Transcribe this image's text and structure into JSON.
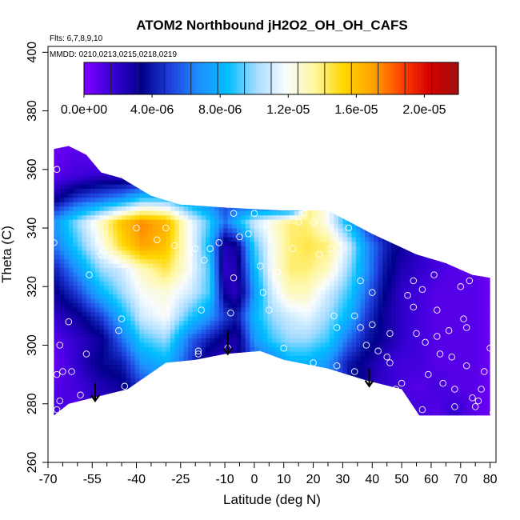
{
  "chart_data": {
    "type": "heatmap",
    "title": "ATOM2 Northbound jH2O2_OH_OH_CAFS",
    "subtitle_flights": "Flts: 6,7,8,9,10",
    "subtitle_dates": "MMDD: 0210,0213,0215,0218,0219",
    "xlabel": "Latitude (deg N)",
    "ylabel": "Theta (C)",
    "xlim": [
      -70,
      82
    ],
    "ylim": [
      260,
      402
    ],
    "x_ticks": [
      -70,
      -55,
      -40,
      -25,
      -10,
      0,
      10,
      20,
      30,
      40,
      50,
      60,
      70,
      80
    ],
    "x_tick_labels": [
      "-70",
      "-55",
      "-40",
      "-25",
      "-10",
      "0",
      "10",
      "20",
      "30",
      "40",
      "50",
      "60",
      "70",
      "80"
    ],
    "y_ticks": [
      260,
      280,
      300,
      320,
      340,
      360,
      380,
      400
    ],
    "y_tick_labels": [
      "260",
      "280",
      "300",
      "320",
      "340",
      "360",
      "380",
      "400"
    ],
    "colorbar": {
      "min": 0.0,
      "max": 2.2e-05,
      "tick_values": [
        0.0,
        4e-06,
        8e-06,
        1.2e-05,
        1.6e-05,
        2e-05
      ],
      "tick_labels": [
        "0.0e+00",
        "4.0e-06",
        "8.0e-06",
        "1.2e-05",
        "1.6e-05",
        "2.0e-05"
      ],
      "colors": [
        "#7f00ff",
        "#3a00d8",
        "#00008b",
        "#1f3fdd",
        "#1e90ff",
        "#00bfff",
        "#a8dcff",
        "#f8fcff",
        "#fff7a0",
        "#ffd700",
        "#ffa500",
        "#ff4500",
        "#d40000",
        "#a01010"
      ]
    },
    "field_grid": {
      "lat": [
        -68,
        -60,
        -52,
        -45,
        -38,
        -30,
        -22,
        -15,
        -10,
        -6,
        0,
        6,
        12,
        18,
        25,
        32,
        38,
        44,
        50,
        56,
        62,
        68,
        74,
        80
      ],
      "theta": [
        278,
        286,
        294,
        302,
        310,
        318,
        326,
        334,
        342,
        350,
        358,
        366
      ],
      "units": "1e-06",
      "values": [
        [
          1.5,
          1.0,
          2.0,
          null,
          null,
          null,
          null,
          null,
          null,
          null,
          null,
          null,
          null,
          null,
          null,
          null,
          null,
          null,
          null,
          1.5,
          1.0,
          2.0,
          1.0,
          0.5
        ],
        [
          1.0,
          1.5,
          2.5,
          3.0,
          5.0,
          null,
          null,
          null,
          null,
          null,
          null,
          null,
          null,
          null,
          null,
          null,
          null,
          2.0,
          1.5,
          1.0,
          1.5,
          1.0,
          1.0,
          0.5
        ],
        [
          0.5,
          2.0,
          3.5,
          4.0,
          7.0,
          8.0,
          5.0,
          2.0,
          2.0,
          3.0,
          5.0,
          6.0,
          8.0,
          8.0,
          7.0,
          4.0,
          3.0,
          2.0,
          1.5,
          1.5,
          1.0,
          1.0,
          1.0,
          0.5
        ],
        [
          1.0,
          2.0,
          3.0,
          6.0,
          9.0,
          10.0,
          6.0,
          4.0,
          3.0,
          2.5,
          7.0,
          9.0,
          10.0,
          10.0,
          9.0,
          6.0,
          4.0,
          3.0,
          2.0,
          1.5,
          1.0,
          1.0,
          1.0,
          0.5
        ],
        [
          2.0,
          3.0,
          5.0,
          8.0,
          11.0,
          12.0,
          9.0,
          7.0,
          5.0,
          4.0,
          8.0,
          10.0,
          11.0,
          11.5,
          10.0,
          8.0,
          5.0,
          3.0,
          2.0,
          1.5,
          1.0,
          1.0,
          1.0,
          0.5
        ],
        [
          3.0,
          5.0,
          8.0,
          10.0,
          12.0,
          12.5,
          11.0,
          9.0,
          3.0,
          2.0,
          7.0,
          11.0,
          13.0,
          13.0,
          11.0,
          9.0,
          6.0,
          3.5,
          2.0,
          1.5,
          1.0,
          1.0,
          1.0,
          0.5
        ],
        [
          4.0,
          7.0,
          10.0,
          11.0,
          13.0,
          14.5,
          12.0,
          9.0,
          2.0,
          2.5,
          8.0,
          12.0,
          14.0,
          14.0,
          13.0,
          10.0,
          7.0,
          4.0,
          2.5,
          2.0,
          1.5,
          1.0,
          1.0,
          0.5
        ],
        [
          6.0,
          9.0,
          12.0,
          15.0,
          17.0,
          16.0,
          12.0,
          8.0,
          2.5,
          3.0,
          9.0,
          12.0,
          14.0,
          14.5,
          14.0,
          11.0,
          7.0,
          4.5,
          3.0,
          2.0,
          1.5,
          null,
          null,
          null
        ],
        [
          7.0,
          10.0,
          13.0,
          16.0,
          17.5,
          16.5,
          12.0,
          9.0,
          6.0,
          8.0,
          11.0,
          12.5,
          14.0,
          14.0,
          12.0,
          8.0,
          5.0,
          3.0,
          null,
          null,
          null,
          null,
          null,
          null
        ],
        [
          3.0,
          5.0,
          6.0,
          7.0,
          9.0,
          9.0,
          7.0,
          6.0,
          5.0,
          5.0,
          4.0,
          3.0,
          2.0,
          null,
          null,
          null,
          null,
          null,
          null,
          null,
          null,
          null,
          null,
          null
        ],
        [
          1.0,
          1.5,
          2.0,
          2.0,
          2.0,
          1.5,
          1.5,
          1.0,
          1.0,
          null,
          null,
          null,
          null,
          null,
          null,
          null,
          null,
          null,
          null,
          null,
          null,
          null,
          null,
          null
        ],
        [
          0.5,
          1.0,
          0.5,
          null,
          null,
          null,
          null,
          null,
          null,
          null,
          null,
          null,
          null,
          null,
          null,
          null,
          null,
          null,
          null,
          null,
          null,
          null,
          null,
          null
        ]
      ]
    },
    "upper_boundary": [
      [
        -68,
        367
      ],
      [
        -63,
        368
      ],
      [
        -57,
        365
      ],
      [
        -52,
        359
      ],
      [
        -45,
        357
      ],
      [
        -35,
        351
      ],
      [
        -25,
        348
      ],
      [
        -10,
        347
      ],
      [
        10,
        346
      ],
      [
        25,
        346
      ],
      [
        40,
        338
      ],
      [
        55,
        331
      ],
      [
        65,
        328
      ],
      [
        74,
        324
      ],
      [
        80,
        323
      ]
    ],
    "lower_boundary": [
      [
        80,
        276
      ],
      [
        56,
        276
      ],
      [
        50,
        285
      ],
      [
        38,
        288
      ],
      [
        25,
        292
      ],
      [
        10,
        295
      ],
      [
        2,
        298
      ],
      [
        -10,
        297
      ],
      [
        -20,
        295
      ],
      [
        -30,
        294
      ],
      [
        -43,
        285
      ],
      [
        -55,
        282
      ],
      [
        -63,
        280
      ],
      [
        -68,
        276
      ]
    ],
    "sample_points": [
      [
        -67,
        360
      ],
      [
        -68,
        335
      ],
      [
        -66,
        300
      ],
      [
        -67,
        290
      ],
      [
        -65,
        291
      ],
      [
        -62,
        291
      ],
      [
        -66,
        281
      ],
      [
        -67,
        278
      ],
      [
        -59,
        283
      ],
      [
        -57,
        297
      ],
      [
        -56,
        324
      ],
      [
        -63,
        308
      ],
      [
        -52,
        331
      ],
      [
        -47,
        329
      ],
      [
        -45,
        309
      ],
      [
        -46,
        305
      ],
      [
        -44,
        286
      ],
      [
        -40,
        340
      ],
      [
        -33,
        336
      ],
      [
        -30,
        340
      ],
      [
        -27,
        334
      ],
      [
        -23,
        342
      ],
      [
        -20,
        333
      ],
      [
        -22,
        331
      ],
      [
        -15,
        333
      ],
      [
        -17,
        329
      ],
      [
        -18,
        312
      ],
      [
        -19,
        298
      ],
      [
        -19,
        297
      ],
      [
        -12,
        335
      ],
      [
        -9,
        348
      ],
      [
        -7,
        345
      ],
      [
        -5,
        337
      ],
      [
        -8,
        311
      ],
      [
        -9,
        299
      ],
      [
        -7,
        323
      ],
      [
        -2,
        338
      ],
      [
        0,
        345
      ],
      [
        2,
        327
      ],
      [
        3,
        318
      ],
      [
        5,
        312
      ],
      [
        8,
        325
      ],
      [
        10,
        299
      ],
      [
        13,
        333
      ],
      [
        15,
        342
      ],
      [
        17,
        345
      ],
      [
        20,
        342
      ],
      [
        22,
        331
      ],
      [
        20,
        294
      ],
      [
        26,
        333
      ],
      [
        27,
        310
      ],
      [
        28,
        306
      ],
      [
        28,
        293
      ],
      [
        32,
        340
      ],
      [
        34,
        310
      ],
      [
        34,
        291
      ],
      [
        36,
        322
      ],
      [
        38,
        300
      ],
      [
        40,
        307
      ],
      [
        40,
        318
      ],
      [
        42,
        298
      ],
      [
        45,
        296
      ],
      [
        46,
        294
      ],
      [
        48,
        285
      ],
      [
        50,
        287
      ],
      [
        52,
        317
      ],
      [
        54,
        313
      ],
      [
        55,
        304
      ],
      [
        54,
        322
      ],
      [
        57,
        319
      ],
      [
        58,
        301
      ],
      [
        59,
        290
      ],
      [
        61,
        324
      ],
      [
        62,
        312
      ],
      [
        62,
        303
      ],
      [
        63,
        297
      ],
      [
        64,
        287
      ],
      [
        66,
        305
      ],
      [
        67,
        296
      ],
      [
        68,
        285
      ],
      [
        70,
        320
      ],
      [
        71,
        309
      ],
      [
        72,
        306
      ],
      [
        72,
        293
      ],
      [
        73,
        322
      ],
      [
        74,
        282
      ],
      [
        75,
        279
      ],
      [
        76,
        281
      ],
      [
        77,
        285
      ],
      [
        78,
        291
      ],
      [
        80,
        299
      ],
      [
        81,
        277
      ],
      [
        57,
        278
      ],
      [
        68,
        279
      ],
      [
        46,
        304
      ],
      [
        36,
        306
      ]
    ],
    "arrows": [
      {
        "lat": -54,
        "theta_from": 287,
        "theta_to": 281
      },
      {
        "lat": -9,
        "theta_from": 305,
        "theta_to": 297
      },
      {
        "lat": 39,
        "theta_from": 292,
        "theta_to": 286
      }
    ]
  }
}
